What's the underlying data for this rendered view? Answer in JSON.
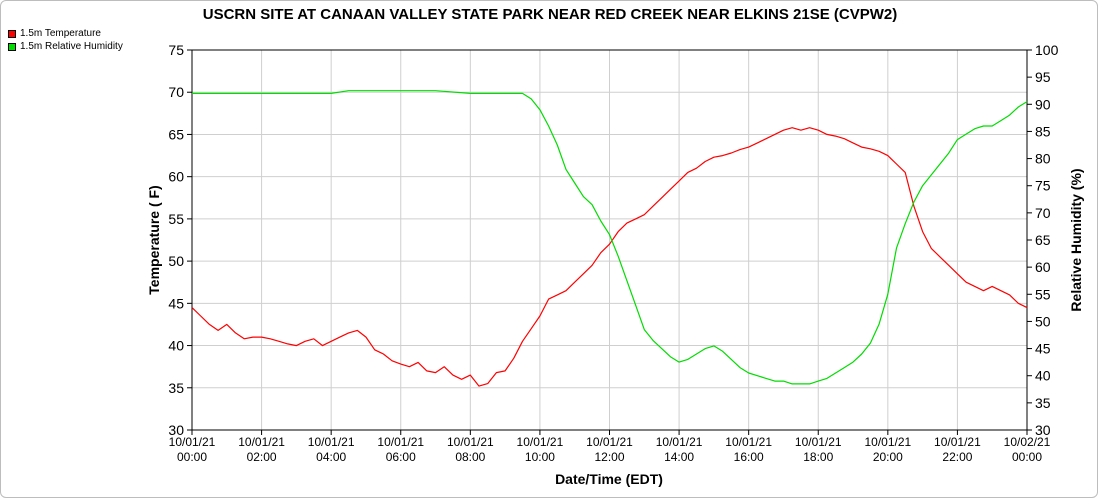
{
  "chart_data": {
    "type": "line",
    "title": "USCRN SITE AT CANAAN VALLEY STATE PARK NEAR RED CREEK NEAR ELKINS 21SE (CVPW2)",
    "xlabel": "Date/Time (EDT)",
    "ylabel_left": "Temperature ( F)",
    "ylabel_right": "Relative Humidity (%)",
    "xlim": [
      0,
      24
    ],
    "ylim_left": [
      30,
      75
    ],
    "ylim_right": [
      30,
      100
    ],
    "yticks_left": [
      "30",
      "35",
      "40",
      "45",
      "50",
      "55",
      "60",
      "65",
      "70",
      "75"
    ],
    "yticks_right": [
      "30",
      "35",
      "40",
      "45",
      "50",
      "55",
      "60",
      "65",
      "70",
      "75",
      "80",
      "85",
      "90",
      "95",
      "100"
    ],
    "xticks": [
      {
        "date": "10/01/21",
        "time": "00:00",
        "x": 0
      },
      {
        "date": "10/01/21",
        "time": "02:00",
        "x": 2
      },
      {
        "date": "10/01/21",
        "time": "04:00",
        "x": 4
      },
      {
        "date": "10/01/21",
        "time": "06:00",
        "x": 6
      },
      {
        "date": "10/01/21",
        "time": "08:00",
        "x": 8
      },
      {
        "date": "10/01/21",
        "time": "10:00",
        "x": 10
      },
      {
        "date": "10/01/21",
        "time": "12:00",
        "x": 12
      },
      {
        "date": "10/01/21",
        "time": "14:00",
        "x": 14
      },
      {
        "date": "10/01/21",
        "time": "16:00",
        "x": 16
      },
      {
        "date": "10/01/21",
        "time": "18:00",
        "x": 18
      },
      {
        "date": "10/01/21",
        "time": "20:00",
        "x": 20
      },
      {
        "date": "10/01/21",
        "time": "22:00",
        "x": 22
      },
      {
        "date": "10/02/21",
        "time": "00:00",
        "x": 24
      }
    ],
    "grid": true,
    "legend_position": "top-left",
    "series": [
      {
        "name": "1.5m Temperature",
        "axis": "left",
        "color": "#ff0000",
        "points": [
          [
            0.0,
            44.5
          ],
          [
            0.25,
            43.5
          ],
          [
            0.5,
            42.5
          ],
          [
            0.75,
            41.8
          ],
          [
            1.0,
            42.5
          ],
          [
            1.25,
            41.5
          ],
          [
            1.5,
            40.8
          ],
          [
            1.75,
            41.0
          ],
          [
            2.0,
            41.0
          ],
          [
            2.25,
            40.8
          ],
          [
            2.5,
            40.5
          ],
          [
            2.75,
            40.2
          ],
          [
            3.0,
            40.0
          ],
          [
            3.25,
            40.5
          ],
          [
            3.5,
            40.8
          ],
          [
            3.75,
            40.0
          ],
          [
            4.0,
            40.5
          ],
          [
            4.25,
            41.0
          ],
          [
            4.5,
            41.5
          ],
          [
            4.75,
            41.8
          ],
          [
            5.0,
            41.0
          ],
          [
            5.25,
            39.5
          ],
          [
            5.5,
            39.0
          ],
          [
            5.75,
            38.2
          ],
          [
            6.0,
            37.8
          ],
          [
            6.25,
            37.5
          ],
          [
            6.5,
            38.0
          ],
          [
            6.75,
            37.0
          ],
          [
            7.0,
            36.8
          ],
          [
            7.25,
            37.5
          ],
          [
            7.5,
            36.5
          ],
          [
            7.75,
            36.0
          ],
          [
            8.0,
            36.5
          ],
          [
            8.25,
            35.2
          ],
          [
            8.5,
            35.5
          ],
          [
            8.75,
            36.8
          ],
          [
            9.0,
            37.0
          ],
          [
            9.25,
            38.5
          ],
          [
            9.5,
            40.5
          ],
          [
            9.75,
            42.0
          ],
          [
            10.0,
            43.5
          ],
          [
            10.25,
            45.5
          ],
          [
            10.5,
            46.0
          ],
          [
            10.75,
            46.5
          ],
          [
            11.0,
            47.5
          ],
          [
            11.25,
            48.5
          ],
          [
            11.5,
            49.5
          ],
          [
            11.75,
            51.0
          ],
          [
            12.0,
            52.0
          ],
          [
            12.25,
            53.5
          ],
          [
            12.5,
            54.5
          ],
          [
            12.75,
            55.0
          ],
          [
            13.0,
            55.5
          ],
          [
            13.25,
            56.5
          ],
          [
            13.5,
            57.5
          ],
          [
            13.75,
            58.5
          ],
          [
            14.0,
            59.5
          ],
          [
            14.25,
            60.5
          ],
          [
            14.5,
            61.0
          ],
          [
            14.75,
            61.8
          ],
          [
            15.0,
            62.3
          ],
          [
            15.25,
            62.5
          ],
          [
            15.5,
            62.8
          ],
          [
            15.75,
            63.2
          ],
          [
            16.0,
            63.5
          ],
          [
            16.25,
            64.0
          ],
          [
            16.5,
            64.5
          ],
          [
            16.75,
            65.0
          ],
          [
            17.0,
            65.5
          ],
          [
            17.25,
            65.8
          ],
          [
            17.5,
            65.5
          ],
          [
            17.75,
            65.8
          ],
          [
            18.0,
            65.5
          ],
          [
            18.25,
            65.0
          ],
          [
            18.5,
            64.8
          ],
          [
            18.75,
            64.5
          ],
          [
            19.0,
            64.0
          ],
          [
            19.25,
            63.5
          ],
          [
            19.5,
            63.3
          ],
          [
            19.75,
            63.0
          ],
          [
            20.0,
            62.5
          ],
          [
            20.25,
            61.5
          ],
          [
            20.5,
            60.5
          ],
          [
            20.75,
            56.5
          ],
          [
            21.0,
            53.5
          ],
          [
            21.25,
            51.5
          ],
          [
            21.5,
            50.5
          ],
          [
            21.75,
            49.5
          ],
          [
            22.0,
            48.5
          ],
          [
            22.25,
            47.5
          ],
          [
            22.5,
            47.0
          ],
          [
            22.75,
            46.5
          ],
          [
            23.0,
            47.0
          ],
          [
            23.25,
            46.5
          ],
          [
            23.5,
            46.0
          ],
          [
            23.75,
            45.0
          ],
          [
            24.0,
            44.5
          ]
        ]
      },
      {
        "name": "1.5m Relative Humidity",
        "axis": "right",
        "color": "#00dd00",
        "points": [
          [
            0.0,
            92.0
          ],
          [
            1.0,
            92.0
          ],
          [
            2.0,
            92.0
          ],
          [
            3.0,
            92.0
          ],
          [
            4.0,
            92.0
          ],
          [
            4.5,
            92.5
          ],
          [
            5.0,
            92.5
          ],
          [
            6.0,
            92.5
          ],
          [
            7.0,
            92.5
          ],
          [
            8.0,
            92.0
          ],
          [
            9.0,
            92.0
          ],
          [
            9.5,
            92.0
          ],
          [
            9.75,
            91.0
          ],
          [
            10.0,
            89.0
          ],
          [
            10.25,
            86.0
          ],
          [
            10.5,
            82.5
          ],
          [
            10.75,
            78.0
          ],
          [
            11.0,
            75.5
          ],
          [
            11.25,
            73.0
          ],
          [
            11.5,
            71.5
          ],
          [
            11.75,
            68.5
          ],
          [
            12.0,
            66.0
          ],
          [
            12.25,
            62.0
          ],
          [
            12.5,
            57.5
          ],
          [
            12.75,
            53.0
          ],
          [
            13.0,
            48.5
          ],
          [
            13.25,
            46.5
          ],
          [
            13.5,
            45.0
          ],
          [
            13.75,
            43.5
          ],
          [
            14.0,
            42.5
          ],
          [
            14.25,
            43.0
          ],
          [
            14.5,
            44.0
          ],
          [
            14.75,
            45.0
          ],
          [
            15.0,
            45.5
          ],
          [
            15.25,
            44.5
          ],
          [
            15.5,
            43.0
          ],
          [
            15.75,
            41.5
          ],
          [
            16.0,
            40.5
          ],
          [
            16.25,
            40.0
          ],
          [
            16.5,
            39.5
          ],
          [
            16.75,
            39.0
          ],
          [
            17.0,
            39.0
          ],
          [
            17.25,
            38.5
          ],
          [
            17.5,
            38.5
          ],
          [
            17.75,
            38.5
          ],
          [
            18.0,
            39.0
          ],
          [
            18.25,
            39.5
          ],
          [
            18.5,
            40.5
          ],
          [
            18.75,
            41.5
          ],
          [
            19.0,
            42.5
          ],
          [
            19.25,
            44.0
          ],
          [
            19.5,
            46.0
          ],
          [
            19.75,
            49.5
          ],
          [
            20.0,
            55.0
          ],
          [
            20.25,
            63.5
          ],
          [
            20.5,
            68.0
          ],
          [
            20.75,
            72.0
          ],
          [
            21.0,
            75.0
          ],
          [
            21.25,
            77.0
          ],
          [
            21.5,
            79.0
          ],
          [
            21.75,
            81.0
          ],
          [
            22.0,
            83.5
          ],
          [
            22.25,
            84.5
          ],
          [
            22.5,
            85.5
          ],
          [
            22.75,
            86.0
          ],
          [
            23.0,
            86.0
          ],
          [
            23.25,
            87.0
          ],
          [
            23.5,
            88.0
          ],
          [
            23.75,
            89.5
          ],
          [
            24.0,
            90.5
          ]
        ]
      }
    ]
  }
}
